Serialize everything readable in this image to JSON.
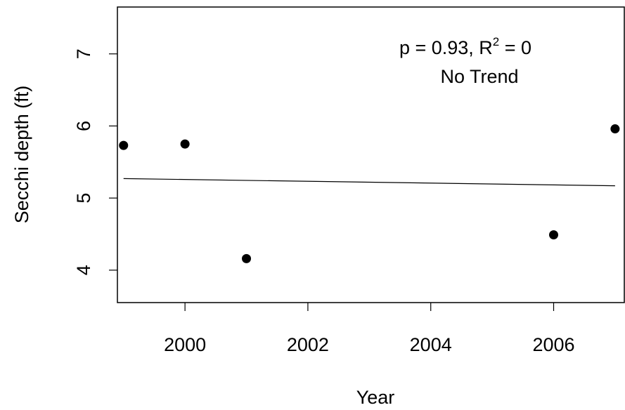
{
  "chart_data": {
    "type": "scatter",
    "title": "",
    "xlabel": "Year",
    "ylabel": "Secchi depth (ft)",
    "xlim": [
      1998.9,
      2007.15
    ],
    "ylim": [
      3.55,
      7.65
    ],
    "x_ticks": [
      2000,
      2002,
      2004,
      2006
    ],
    "x_tick_labels": [
      "2000",
      "2002",
      "2004",
      "2006"
    ],
    "y_ticks": [
      4,
      5,
      6,
      7
    ],
    "y_tick_labels": [
      "4",
      "5",
      "6",
      "7"
    ],
    "grid": false,
    "legend": "none",
    "points": [
      {
        "x": 1999,
        "y": 5.73
      },
      {
        "x": 2000,
        "y": 5.75
      },
      {
        "x": 2001,
        "y": 4.16
      },
      {
        "x": 2006,
        "y": 4.49
      },
      {
        "x": 2007,
        "y": 5.96
      }
    ],
    "trend_line": {
      "x": [
        1999,
        2007
      ],
      "y": [
        5.27,
        5.17
      ]
    },
    "annotation": {
      "line1_main": "p = 0.93, R",
      "line1_sup": "2",
      "line1_tail": " = 0",
      "line2": "No Trend"
    },
    "colors": {
      "points": "#000000",
      "line": "#000000",
      "background": "#ffffff"
    }
  }
}
